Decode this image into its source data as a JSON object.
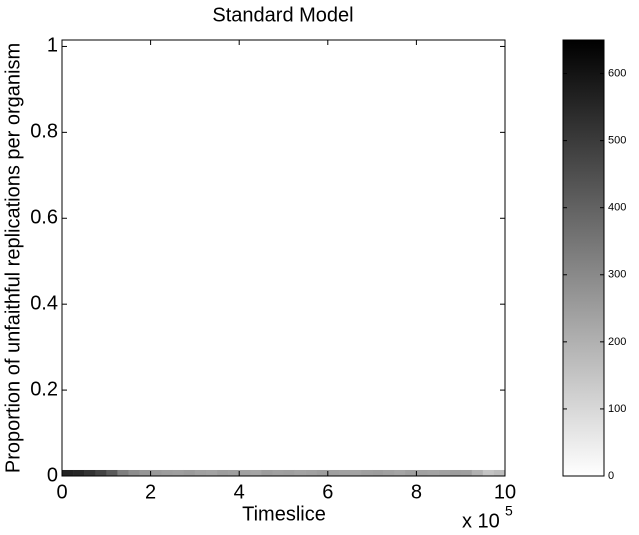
{
  "chart_data": {
    "type": "heatmap",
    "title": "Standard Model",
    "x_label": "Timeslice",
    "y_label": "Proportion of unfaithful replications per organism",
    "x_offset_label": {
      "base": "x 10",
      "exponent": "5"
    },
    "xlim": [
      0,
      1000000
    ],
    "xticks": [
      0,
      {
        "value": 200000,
        "label": "2"
      },
      {
        "value": 400000,
        "label": "4"
      },
      {
        "value": 600000,
        "label": "6"
      },
      {
        "value": 800000,
        "label": "8"
      },
      {
        "value": 1000000,
        "label": "10"
      }
    ],
    "ylim": [
      0,
      1.015
    ],
    "yticks": [
      0,
      0.2,
      0.4,
      0.6,
      0.8,
      1
    ],
    "x_edges": [
      0,
      25000,
      50000,
      75000,
      100000,
      125000,
      150000,
      175000,
      200000,
      225000,
      250000,
      275000,
      300000,
      325000,
      350000,
      375000,
      400000,
      425000,
      450000,
      475000,
      500000,
      525000,
      550000,
      575000,
      600000,
      625000,
      650000,
      675000,
      700000,
      725000,
      750000,
      775000,
      800000,
      825000,
      850000,
      875000,
      900000,
      925000,
      950000,
      975000,
      1000000
    ],
    "y_edges": [
      0,
      0.014
    ],
    "values": [
      560,
      550,
      520,
      480,
      420,
      330,
      290,
      270,
      260,
      250,
      245,
      255,
      240,
      235,
      250,
      245,
      240,
      230,
      250,
      240,
      245,
      235,
      240,
      250,
      245,
      240,
      235,
      245,
      250,
      240,
      230,
      245,
      240,
      235,
      240,
      250,
      245,
      200,
      150,
      170
    ],
    "clim": [
      0,
      650
    ],
    "colorbar_ticks": [
      0,
      100,
      200,
      300,
      400,
      500,
      600
    ],
    "colormap": [
      "#ffffff",
      "#000000"
    ]
  }
}
